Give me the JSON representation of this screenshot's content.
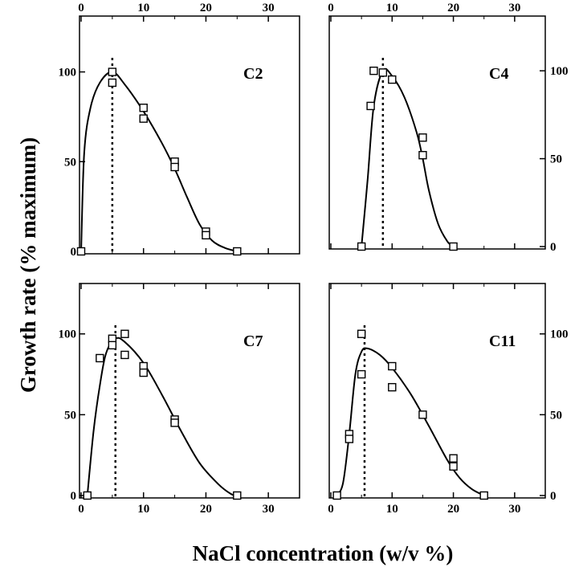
{
  "chart_data": {
    "type": "scatter",
    "xlabel": "NaCl concentration (w/v %)",
    "ylabel": "Growth rate (% maximum)",
    "xlim": [
      0,
      35
    ],
    "ylim": [
      0,
      120
    ],
    "x_ticks": [
      0,
      10,
      20,
      30
    ],
    "y_ticks": [
      0,
      50,
      100
    ],
    "grid": false,
    "legend": "none",
    "panels": [
      {
        "label": "C2",
        "optimum_line_x": 5,
        "points": [
          [
            0,
            0
          ],
          [
            5,
            100
          ],
          [
            5,
            94
          ],
          [
            10,
            80
          ],
          [
            10,
            74
          ],
          [
            15,
            50
          ],
          [
            15,
            47
          ],
          [
            20,
            11
          ],
          [
            20,
            9
          ],
          [
            25,
            0
          ]
        ],
        "curve": [
          [
            0,
            0
          ],
          [
            0.5,
            55
          ],
          [
            1.5,
            80
          ],
          [
            3,
            94
          ],
          [
            5,
            100
          ],
          [
            7,
            93
          ],
          [
            10,
            78
          ],
          [
            13,
            60
          ],
          [
            15,
            46
          ],
          [
            17,
            30
          ],
          [
            19,
            15
          ],
          [
            21,
            6
          ],
          [
            23,
            2
          ],
          [
            25,
            0
          ]
        ]
      },
      {
        "label": "C4",
        "optimum_line_x": 8.5,
        "points": [
          [
            5,
            0
          ],
          [
            7,
            100
          ],
          [
            6.5,
            80
          ],
          [
            8.5,
            99
          ],
          [
            10,
            95
          ],
          [
            15,
            62
          ],
          [
            15,
            52
          ],
          [
            20,
            0
          ]
        ],
        "curve": [
          [
            5,
            0
          ],
          [
            6,
            38
          ],
          [
            7,
            80
          ],
          [
            8.5,
            100
          ],
          [
            10,
            97
          ],
          [
            12,
            85
          ],
          [
            14,
            65
          ],
          [
            15,
            50
          ],
          [
            16,
            32
          ],
          [
            17.5,
            13
          ],
          [
            19,
            3
          ],
          [
            20,
            0
          ]
        ]
      },
      {
        "label": "C7",
        "optimum_line_x": 5.5,
        "points": [
          [
            1,
            0
          ],
          [
            3,
            85
          ],
          [
            5,
            97
          ],
          [
            5,
            93
          ],
          [
            7,
            100
          ],
          [
            7,
            87
          ],
          [
            10,
            80
          ],
          [
            10,
            76
          ],
          [
            15,
            47
          ],
          [
            15,
            45
          ],
          [
            25,
            0
          ]
        ],
        "curve": [
          [
            1,
            0
          ],
          [
            2,
            40
          ],
          [
            3,
            68
          ],
          [
            4,
            88
          ],
          [
            5.5,
            97
          ],
          [
            7,
            95
          ],
          [
            10,
            82
          ],
          [
            13,
            62
          ],
          [
            16,
            40
          ],
          [
            19,
            20
          ],
          [
            22,
            7
          ],
          [
            24,
            1
          ],
          [
            25,
            0
          ]
        ]
      },
      {
        "label": "C11",
        "optimum_line_x": 5.5,
        "points": [
          [
            1,
            0
          ],
          [
            3,
            38
          ],
          [
            3,
            35
          ],
          [
            5,
            100
          ],
          [
            5,
            75
          ],
          [
            10,
            80
          ],
          [
            10,
            67
          ],
          [
            15,
            50
          ],
          [
            20,
            23
          ],
          [
            20,
            18
          ],
          [
            25,
            0
          ]
        ],
        "curve": [
          [
            1,
            0
          ],
          [
            2,
            8
          ],
          [
            3,
            38
          ],
          [
            4,
            75
          ],
          [
            5,
            89
          ],
          [
            6,
            91
          ],
          [
            8,
            87
          ],
          [
            10,
            79
          ],
          [
            13,
            63
          ],
          [
            16,
            43
          ],
          [
            19,
            22
          ],
          [
            21,
            11
          ],
          [
            23,
            4
          ],
          [
            25,
            0
          ]
        ]
      }
    ]
  }
}
